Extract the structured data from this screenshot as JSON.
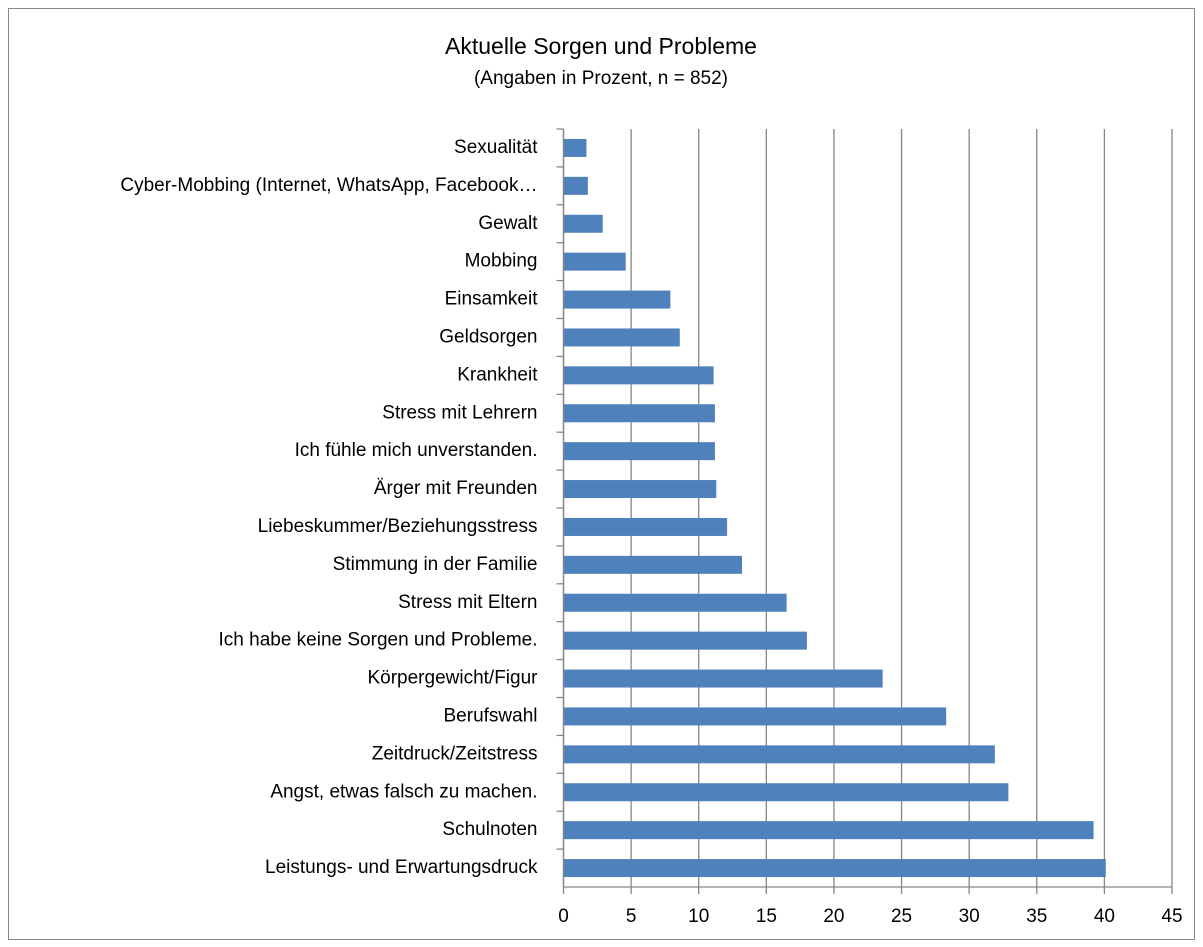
{
  "chart_data": {
    "type": "bar",
    "orientation": "horizontal",
    "title": "Aktuelle Sorgen und Probleme",
    "subtitle": "(Angaben in Prozent, n = 852)",
    "categories": [
      "Sexualität",
      "Cyber-Mobbing (Internet, WhatsApp, Facebook…",
      "Gewalt",
      "Mobbing",
      "Einsamkeit",
      "Geldsorgen",
      "Krankheit",
      "Stress mit Lehrern",
      "Ich fühle mich unverstanden.",
      "Ärger mit Freunden",
      "Liebeskummer/Beziehungsstress",
      "Stimmung in der Familie",
      "Stress mit Eltern",
      "Ich habe keine Sorgen und Probleme.",
      "Körpergewicht/Figur",
      "Berufswahl",
      "Zeitdruck/Zeitstress",
      "Angst, etwas falsch zu machen.",
      "Schulnoten",
      "Leistungs- und Erwartungsdruck"
    ],
    "values": [
      1.7,
      1.8,
      2.9,
      4.6,
      7.9,
      8.6,
      11.1,
      11.2,
      11.2,
      11.3,
      12.1,
      13.2,
      16.5,
      18.0,
      23.6,
      28.3,
      31.9,
      32.9,
      39.2,
      40.1
    ],
    "color": "#4f81bd",
    "xlim": [
      0,
      45
    ],
    "xticks": [
      0,
      5,
      10,
      15,
      20,
      25,
      30,
      35,
      40,
      45
    ],
    "grid": true
  }
}
